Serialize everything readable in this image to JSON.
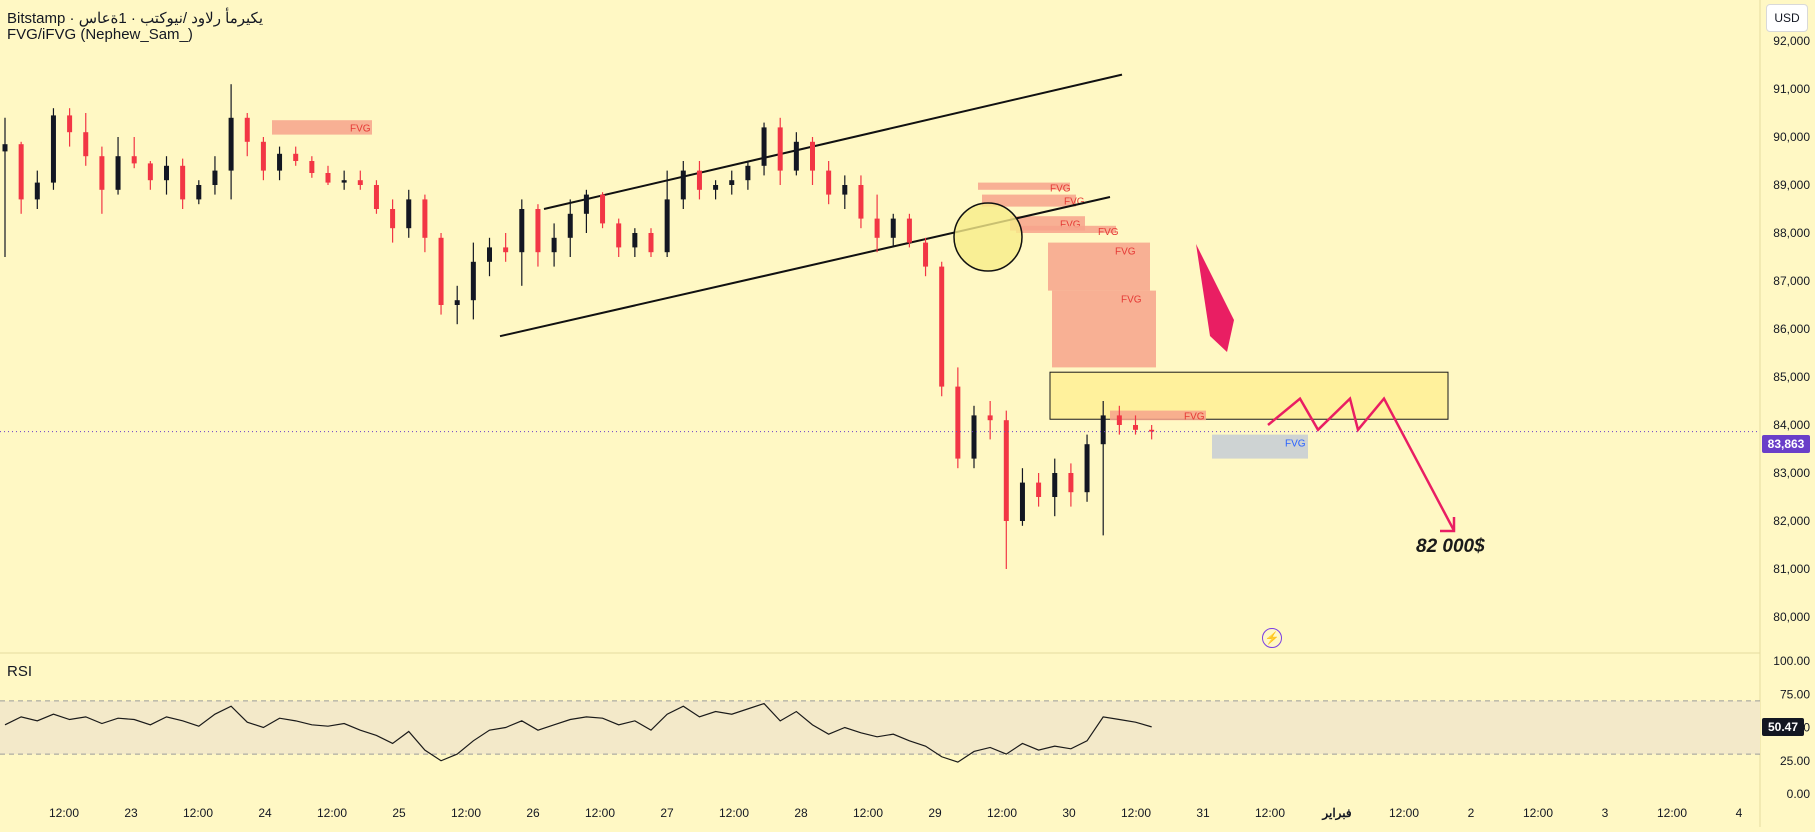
{
  "header": {
    "symbol_line": "Bitstamp · يكيرمأ رلاود /نيوكتب · 1ةعاس",
    "indicator_name": "FVG/iFVG (Nephew_Sam_)"
  },
  "currency": "USD",
  "rsi_label": "RSI",
  "current_price_label": "83,863",
  "rsi_value_label": "50.47",
  "target_label": "82 000$",
  "icons": {
    "flash": "flash-icon"
  },
  "colors": {
    "background": "#fff8c4",
    "up_candle": "#131722",
    "down_candle": "#f23645",
    "fvg_bearish": "#f7a38c",
    "fvg_bullish": "#c5ccd6",
    "zone": "#fff19c",
    "projection": "#e91e63",
    "rsi_band": "#f3e9c9",
    "price_tag": "#6a3fc9"
  },
  "chart_data": {
    "type": "candlestick",
    "price_axis": {
      "min": 79700,
      "max": 92300,
      "ticks": [
        80000,
        81000,
        82000,
        83000,
        84000,
        85000,
        86000,
        87000,
        88000,
        89000,
        90000,
        91000,
        92000
      ],
      "tick_labels": [
        "80,000",
        "81,000",
        "82,000",
        "83,000",
        "84,000",
        "85,000",
        "86,000",
        "87,000",
        "88,000",
        "89,000",
        "90,000",
        "91,000",
        "92,000"
      ]
    },
    "time_axis": {
      "labels": [
        "12:00",
        "23",
        "12:00",
        "24",
        "12:00",
        "25",
        "12:00",
        "26",
        "12:00",
        "27",
        "12:00",
        "28",
        "12:00",
        "29",
        "12:00",
        "30",
        "12:00",
        "31",
        "12:00",
        "فبراير",
        "12:00",
        "2",
        "12:00",
        "3",
        "12:00",
        "4"
      ],
      "bold_labels": [
        "فبراير"
      ]
    },
    "current_price": 83863,
    "path_points": [
      [
        89700,
        90400,
        87500,
        89850
      ],
      [
        89850,
        89900,
        88400,
        88700
      ],
      [
        88700,
        89300,
        88500,
        89050
      ],
      [
        89050,
        90600,
        88900,
        90450
      ],
      [
        90450,
        90600,
        89800,
        90100
      ],
      [
        90100,
        90500,
        89400,
        89600
      ],
      [
        89600,
        89800,
        88400,
        88900
      ],
      [
        88900,
        90000,
        88800,
        89600
      ],
      [
        89600,
        90000,
        89350,
        89450
      ],
      [
        89450,
        89500,
        88900,
        89100
      ],
      [
        89100,
        89600,
        88800,
        89400
      ],
      [
        89400,
        89550,
        88500,
        88700
      ],
      [
        88700,
        89100,
        88600,
        89000
      ],
      [
        89000,
        89600,
        88800,
        89300
      ],
      [
        89300,
        91100,
        88700,
        90400
      ],
      [
        90400,
        90500,
        89600,
        89900
      ],
      [
        89900,
        90000,
        89100,
        89300
      ],
      [
        89300,
        89800,
        89100,
        89650
      ],
      [
        89650,
        89800,
        89400,
        89500
      ],
      [
        89500,
        89600,
        89150,
        89250
      ],
      [
        89250,
        89400,
        89000,
        89050
      ],
      [
        89050,
        89300,
        88900,
        89100
      ],
      [
        89100,
        89300,
        88900,
        89000
      ],
      [
        89000,
        89100,
        88400,
        88500
      ],
      [
        88500,
        88700,
        87800,
        88100
      ],
      [
        88100,
        88900,
        87900,
        88700
      ],
      [
        88700,
        88800,
        87600,
        87900
      ],
      [
        87900,
        88000,
        86300,
        86500
      ],
      [
        86500,
        86900,
        86100,
        86600
      ],
      [
        86600,
        87800,
        86200,
        87400
      ],
      [
        87400,
        87900,
        87100,
        87700
      ],
      [
        87700,
        88000,
        87400,
        87600
      ],
      [
        87600,
        88700,
        86900,
        88500
      ],
      [
        88500,
        88600,
        87300,
        87600
      ],
      [
        87600,
        88200,
        87300,
        87900
      ],
      [
        87900,
        88700,
        87500,
        88400
      ],
      [
        88400,
        88900,
        88000,
        88800
      ],
      [
        88800,
        88850,
        88100,
        88200
      ],
      [
        88200,
        88300,
        87500,
        87700
      ],
      [
        87700,
        88100,
        87500,
        88000
      ],
      [
        88000,
        88100,
        87500,
        87600
      ],
      [
        87600,
        89300,
        87500,
        88700
      ],
      [
        88700,
        89500,
        88500,
        89300
      ],
      [
        89300,
        89500,
        88700,
        88900
      ],
      [
        88900,
        89100,
        88700,
        89000
      ],
      [
        89000,
        89300,
        88800,
        89100
      ],
      [
        89100,
        89500,
        88900,
        89400
      ],
      [
        89400,
        90300,
        89200,
        90200
      ],
      [
        90200,
        90400,
        89000,
        89300
      ],
      [
        89300,
        90100,
        89200,
        89900
      ],
      [
        89900,
        90000,
        89000,
        89300
      ],
      [
        89300,
        89500,
        88600,
        88800
      ],
      [
        88800,
        89200,
        88500,
        89000
      ],
      [
        89000,
        89200,
        88100,
        88300
      ],
      [
        88300,
        88800,
        87600,
        87900
      ],
      [
        87900,
        88400,
        87700,
        88300
      ],
      [
        88300,
        88400,
        87700,
        87800
      ],
      [
        87800,
        87900,
        87100,
        87300
      ],
      [
        87300,
        87400,
        84600,
        84800
      ],
      [
        84800,
        85200,
        83100,
        83300
      ],
      [
        83300,
        84400,
        83100,
        84200
      ],
      [
        84200,
        84500,
        83700,
        84100
      ],
      [
        84100,
        84300,
        81000,
        82000
      ],
      [
        82000,
        83100,
        81900,
        82800
      ],
      [
        82800,
        83000,
        82300,
        82500
      ],
      [
        82500,
        83300,
        82100,
        83000
      ],
      [
        83000,
        83200,
        82300,
        82600
      ],
      [
        82600,
        83800,
        82400,
        83600
      ],
      [
        83600,
        84500,
        81700,
        84200
      ],
      [
        84200,
        84400,
        83800,
        84000
      ],
      [
        84000,
        84200,
        83800,
        83900
      ],
      [
        83900,
        84000,
        83700,
        83863
      ]
    ],
    "channel_lines": [
      {
        "from": [
          "26",
          88500
        ],
        "to": [
          "29 12:00",
          91300
        ]
      },
      {
        "from": [
          "25 12:00",
          85850
        ],
        "to": [
          "29 12:00",
          88750
        ]
      }
    ],
    "fvg_zones": [
      {
        "label": "FVG",
        "type": "bearish",
        "price_top": 90350,
        "price_bottom": 90050
      },
      {
        "label": "FVG",
        "type": "bearish",
        "price_top": 89050,
        "price_bottom": 88900
      },
      {
        "label": "FVG",
        "type": "bearish",
        "price_top": 88800,
        "price_bottom": 88550
      },
      {
        "label": "FVG",
        "type": "bearish",
        "price_top": 88350,
        "price_bottom": 88050
      },
      {
        "label": "FVG",
        "type": "bearish",
        "price_top": 88150,
        "price_bottom": 88000
      },
      {
        "label": "FVG",
        "type": "bearish",
        "price_top": 87800,
        "price_bottom": 86800
      },
      {
        "label": "FVG",
        "type": "bearish",
        "price_top": 86800,
        "price_bottom": 85200
      },
      {
        "label": "FVG",
        "type": "bearish",
        "price_top": 84300,
        "price_bottom": 84100
      },
      {
        "label": "FVG",
        "type": "bullish",
        "price_top": 83800,
        "price_bottom": 83300
      }
    ],
    "resistance_zone": {
      "price_top": 85100,
      "price_bottom": 84120
    },
    "projection_path": [
      84000,
      84550,
      83900,
      84550,
      83900,
      84550,
      81800
    ],
    "target_price": 82000,
    "rsi": {
      "axis_ticks": [
        0,
        25,
        50,
        75,
        100
      ],
      "tick_labels": [
        "0.00",
        "25.00",
        "50.00",
        "75.00",
        "100.00"
      ],
      "upper_band": 70,
      "lower_band": 30,
      "current": 50.47,
      "values": [
        52,
        58,
        55,
        60,
        56,
        58,
        53,
        57,
        56,
        52,
        58,
        55,
        51,
        60,
        66,
        54,
        50,
        57,
        55,
        52,
        51,
        53,
        48,
        44,
        38,
        47,
        33,
        25,
        30,
        40,
        48,
        50,
        55,
        48,
        52,
        56,
        58,
        57,
        52,
        55,
        48,
        60,
        66,
        58,
        62,
        60,
        64,
        68,
        55,
        62,
        52,
        45,
        50,
        46,
        43,
        45,
        40,
        36,
        28,
        24,
        32,
        35,
        30,
        38,
        33,
        36,
        34,
        40,
        58,
        56,
        54,
        50.47
      ]
    }
  }
}
